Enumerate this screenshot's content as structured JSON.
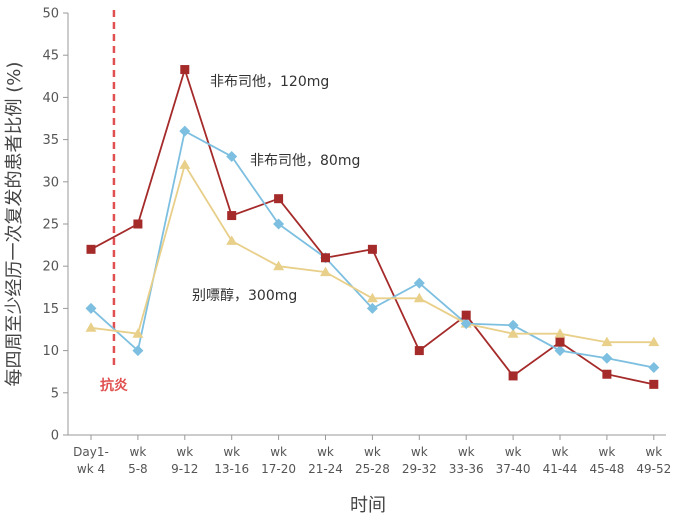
{
  "chart_data": {
    "type": "line",
    "title": "",
    "xlabel": "时间",
    "ylabel": "每四周至少经历一次复发的患者比例 (%)",
    "ylim": [
      0,
      50
    ],
    "yticks": [
      0,
      5,
      10,
      15,
      20,
      25,
      30,
      35,
      40,
      45,
      50
    ],
    "grid": false,
    "categories": [
      [
        "Day1-",
        "wk 4"
      ],
      [
        "wk",
        "5-8"
      ],
      [
        "wk",
        "9-12"
      ],
      [
        "wk",
        "13-16"
      ],
      [
        "wk",
        "17-20"
      ],
      [
        "wk",
        "21-24"
      ],
      [
        "wk",
        "25-28"
      ],
      [
        "wk",
        "29-32"
      ],
      [
        "wk",
        "33-36"
      ],
      [
        "wk",
        "37-40"
      ],
      [
        "wk",
        "41-44"
      ],
      [
        "wk",
        "45-48"
      ],
      [
        "wk",
        "49-52"
      ]
    ],
    "series": [
      {
        "name": "非布司他，120mg",
        "color": "#a52a2a",
        "marker": "square",
        "values": [
          22,
          25,
          43.3,
          26,
          28,
          21,
          22,
          10,
          14.2,
          7,
          11,
          7.2,
          6
        ]
      },
      {
        "name": "非布司他，80mg",
        "color": "#7dbfe0",
        "marker": "diamond",
        "values": [
          15,
          10,
          36,
          33,
          25,
          21,
          15,
          18,
          13.2,
          13,
          10,
          9.1,
          8
        ]
      },
      {
        "name": "别嘌醇，300mg",
        "color": "#e8cf8a",
        "marker": "triangle",
        "values": [
          12.7,
          12,
          32,
          23,
          20,
          19.3,
          16.2,
          16.2,
          13.2,
          12,
          12,
          11,
          11
        ]
      }
    ],
    "annotations": [
      {
        "text": "抗炎",
        "type": "vertical-line",
        "between_categories": [
          0,
          1
        ],
        "color": "#e05050"
      }
    ]
  }
}
